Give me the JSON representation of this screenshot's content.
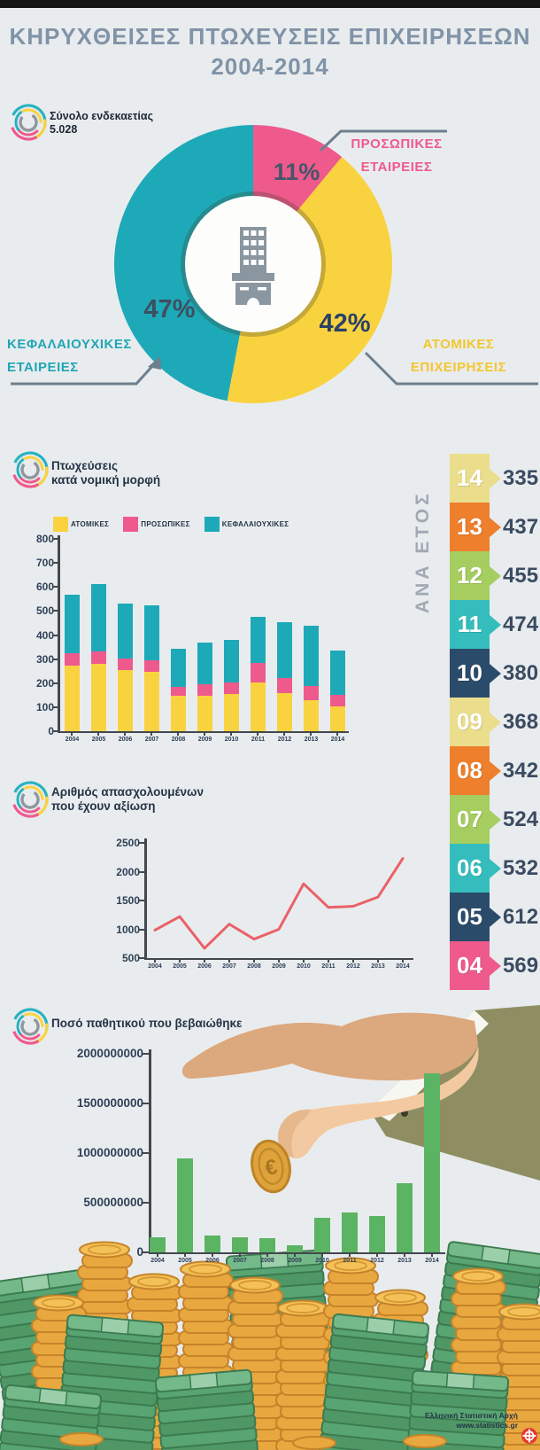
{
  "header": {
    "title_line1": "ΚΗΡΥΧΘΕΙΣΕΣ ΠΤΩΧΕΥΣΕΙΣ ΕΠΙΧΕΙΡΗΣΕΩΝ",
    "title_line2": "2004-2014"
  },
  "summary": {
    "label": "Σύνολο ενδεκαετίας",
    "value": "5.028"
  },
  "donut": {
    "callouts": [
      {
        "line1": "ΠΡΟΣΩΠΙΚΕΣ",
        "line2": "ΕΤΑΙΡΕΙΕΣ",
        "color": "#ee5a8c"
      },
      {
        "line1": "ΑΤΟΜΙΚΕΣ",
        "line2": "ΕΠΙΧΕΙΡΗΣΕΙΣ",
        "color": "#f2c62e"
      },
      {
        "line1": "ΚΕΦΑΛΑΙΟΥΧΙΚΕΣ",
        "line2": "ΕΤΑΙΡΕΙΕΣ",
        "color": "#21a6b6"
      }
    ]
  },
  "sections": {
    "bankruptcies": {
      "line1": "Πτωχεύσεις",
      "line2": "κατά νομική μορφή"
    },
    "employees": {
      "line1": "Αριθμός απασχολουμένων",
      "line2": "που έχουν αξίωση"
    },
    "liabilities": {
      "title": "Ποσό παθητικού που βεβαιώθηκε"
    }
  },
  "by_year": {
    "title": "ΑΝΑ ΕΤΟΣ",
    "items": [
      {
        "year": "14",
        "value": "335",
        "color": "#eade8d"
      },
      {
        "year": "13",
        "value": "437",
        "color": "#ee7f2c"
      },
      {
        "year": "12",
        "value": "455",
        "color": "#a6cd60"
      },
      {
        "year": "11",
        "value": "474",
        "color": "#35bdbd"
      },
      {
        "year": "10",
        "value": "380",
        "color": "#2b4b6b"
      },
      {
        "year": "09",
        "value": "368",
        "color": "#eade8d"
      },
      {
        "year": "08",
        "value": "342",
        "color": "#ee7f2c"
      },
      {
        "year": "07",
        "value": "524",
        "color": "#a6cd60"
      },
      {
        "year": "06",
        "value": "532",
        "color": "#35bdbd"
      },
      {
        "year": "05",
        "value": "612",
        "color": "#2b4b6b"
      },
      {
        "year": "04",
        "value": "569",
        "color": "#ee5a8c"
      }
    ]
  },
  "footer": {
    "org": "Ελληνική Στατιστική Αρχή",
    "url": "www.statistics.gr"
  },
  "chart_data": [
    {
      "type": "pie",
      "donut": true,
      "title": "Σύνολο ενδεκαετίας 5.028",
      "unit": "%",
      "slices": [
        {
          "label": "ΠΡΟΣΩΠΙΚΕΣ ΕΤΑΙΡΕΙΕΣ",
          "value": 11,
          "pct_label": "11%",
          "color": "#ee5a8c"
        },
        {
          "label": "ΑΤΟΜΙΚΕΣ ΕΠΙΧΕΙΡΗΣΕΙΣ",
          "value": 42,
          "pct_label": "42%",
          "color": "#f9d23f"
        },
        {
          "label": "ΚΕΦΑΛΑΙΟΥΧΙΚΕΣ ΕΤΑΙΡΕΙΕΣ",
          "value": 47,
          "pct_label": "47%",
          "color": "#1ea9b8"
        }
      ]
    },
    {
      "type": "bar",
      "stacked": true,
      "title": "Πτωχεύσεις κατά νομική μορφή",
      "categories": [
        "2004",
        "2005",
        "2006",
        "2007",
        "2008",
        "2009",
        "2010",
        "2011",
        "2012",
        "2013",
        "2014"
      ],
      "series": [
        {
          "name": "ΑΤΟΜΙΚΕΣ",
          "color": "#f9d23f",
          "values": [
            274,
            282,
            256,
            248,
            148,
            148,
            155,
            203,
            158,
            130,
            105
          ]
        },
        {
          "name": "ΠΡΟΣΩΠΙΚΕΣ",
          "color": "#ee5a8c",
          "values": [
            51,
            51,
            48,
            47,
            38,
            46,
            48,
            81,
            62,
            58,
            45
          ]
        },
        {
          "name": "ΚΕΦΑΛΑΙΟΥΧΙΚΕΣ",
          "color": "#1ea9b8",
          "values": [
            244,
            279,
            228,
            229,
            156,
            174,
            177,
            190,
            235,
            249,
            185
          ]
        }
      ],
      "totals": [
        569,
        612,
        532,
        524,
        342,
        368,
        380,
        474,
        455,
        437,
        335
      ],
      "ylim": [
        0,
        800
      ],
      "yticks": [
        800,
        700,
        600,
        500,
        400,
        300,
        200,
        100,
        0
      ],
      "legend_position": "top"
    },
    {
      "type": "line",
      "title": "Αριθμός απασχολουμένων που έχουν αξίωση",
      "categories": [
        "2004",
        "2005",
        "2006",
        "2007",
        "2008",
        "2009",
        "2010",
        "2011",
        "2012",
        "2013",
        "2014"
      ],
      "values": [
        985,
        1220,
        670,
        1090,
        830,
        1000,
        1790,
        1380,
        1400,
        1560,
        2230
      ],
      "color": "#ea6168",
      "ylim": [
        500,
        2500
      ],
      "yticks": [
        2500,
        2000,
        1500,
        1000,
        500
      ]
    },
    {
      "type": "bar",
      "title": "Ποσό παθητικού που βεβαιώθηκε",
      "categories": [
        "2004",
        "2005",
        "2006",
        "2007",
        "2008",
        "2009",
        "2010",
        "2011",
        "2012",
        "2013",
        "2014"
      ],
      "values": [
        150000000,
        950000000,
        170000000,
        150000000,
        140000000,
        70000000,
        350000000,
        400000000,
        370000000,
        700000000,
        1800000000
      ],
      "color": "#5ab463",
      "ylim": [
        0,
        2000000000
      ],
      "yticks": [
        "2000000000",
        "1500000000",
        "1000000000",
        "500000000",
        "0"
      ]
    }
  ]
}
